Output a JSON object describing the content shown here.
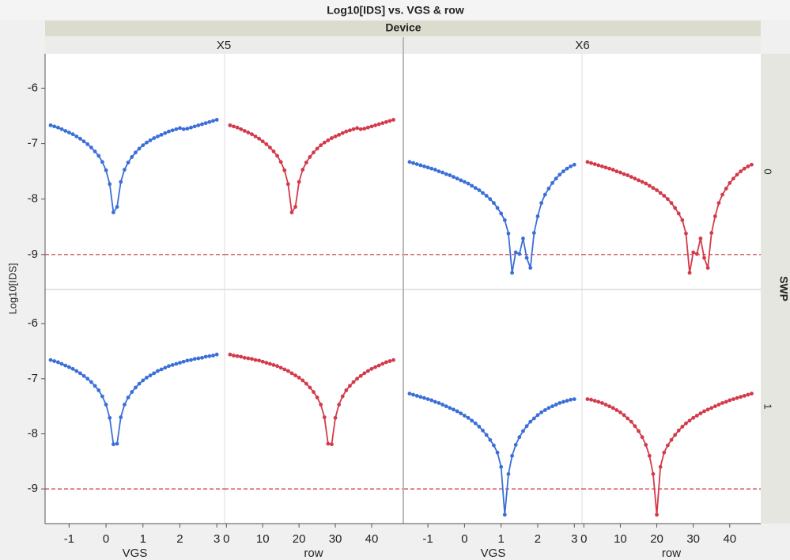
{
  "chart_data": {
    "type": "line",
    "title": "Log10[IDS] vs. VGS & row",
    "y_label": "Log10[IDS]",
    "facet_label": "Device",
    "strip_label": "SWP",
    "ylim": [
      -9.63,
      -5.38
    ],
    "yticks": [
      -9,
      -8,
      -7,
      -6
    ],
    "reference_line": {
      "value": -9,
      "color": "#c8323c"
    },
    "x_axes": [
      {
        "label": "VGS",
        "xlim": [
          -1.65,
          3.21
        ],
        "xticks": [
          -1,
          0,
          1,
          2,
          3
        ],
        "color": "#3b6fd8"
      },
      {
        "label": "row",
        "xlim": [
          -0.5,
          48.5
        ],
        "xticks": [
          0,
          10,
          20,
          30,
          40
        ],
        "color": "#d33a4a"
      }
    ],
    "vgs": [
      -1.5,
      -1.4,
      -1.3,
      -1.2,
      -1.1,
      -1,
      -0.9,
      -0.8,
      -0.7,
      -0.6,
      -0.5,
      -0.4,
      -0.3,
      -0.2,
      -0.1,
      0,
      0.1,
      0.2,
      0.3,
      0.4,
      0.5,
      0.6,
      0.7,
      0.8,
      0.9,
      1,
      1.1,
      1.2,
      1.3,
      1.4,
      1.5,
      1.6,
      1.7,
      1.8,
      1.9,
      2,
      2.1,
      2.2,
      2.3,
      2.4,
      2.5,
      2.6,
      2.7,
      2.8,
      2.9,
      3
    ],
    "swp": [
      {
        "name": "0",
        "row": [
          1,
          2,
          3,
          4,
          5,
          6,
          7,
          8,
          9,
          10,
          11,
          12,
          13,
          14,
          15,
          16,
          17,
          18,
          19,
          20,
          21,
          22,
          23,
          24,
          25,
          26,
          27,
          28,
          29,
          30,
          31,
          32,
          33,
          34,
          35,
          36,
          37,
          38,
          39,
          40,
          41,
          42,
          43,
          44,
          45,
          46
        ]
      },
      {
        "name": "1",
        "row": [
          46,
          45,
          44,
          43,
          42,
          41,
          40,
          39,
          38,
          37,
          36,
          35,
          34,
          33,
          32,
          31,
          30,
          29,
          28,
          27,
          26,
          25,
          24,
          23,
          22,
          21,
          20,
          19,
          18,
          17,
          16,
          15,
          14,
          13,
          12,
          11,
          10,
          9,
          8,
          7,
          6,
          5,
          4,
          3,
          2,
          1
        ]
      }
    ],
    "devices": [
      {
        "name": "X5",
        "cells": [
          {
            "values": [
              -6.67,
              -6.69,
              -6.71,
              -6.74,
              -6.77,
              -6.8,
              -6.83,
              -6.87,
              -6.91,
              -6.96,
              -7.01,
              -7.07,
              -7.14,
              -7.22,
              -7.33,
              -7.48,
              -7.73,
              -8.24,
              -8.14,
              -7.69,
              -7.47,
              -7.34,
              -7.24,
              -7.16,
              -7.09,
              -7.03,
              -6.98,
              -6.94,
              -6.9,
              -6.87,
              -6.84,
              -6.81,
              -6.78,
              -6.76,
              -6.74,
              -6.72,
              -6.74,
              -6.73,
              -6.71,
              -6.69,
              -6.67,
              -6.65,
              -6.63,
              -6.61,
              -6.59,
              -6.57
            ]
          },
          {
            "values": [
              -6.66,
              -6.68,
              -6.7,
              -6.73,
              -6.76,
              -6.79,
              -6.82,
              -6.86,
              -6.9,
              -6.95,
              -7,
              -7.06,
              -7.13,
              -7.21,
              -7.32,
              -7.47,
              -7.71,
              -8.19,
              -8.18,
              -7.7,
              -7.47,
              -7.34,
              -7.24,
              -7.16,
              -7.09,
              -7.03,
              -6.98,
              -6.94,
              -6.9,
              -6.86,
              -6.83,
              -6.8,
              -6.77,
              -6.75,
              -6.73,
              -6.71,
              -6.69,
              -6.67,
              -6.66,
              -6.64,
              -6.63,
              -6.62,
              -6.6,
              -6.59,
              -6.58,
              -6.56
            ]
          }
        ]
      },
      {
        "name": "X6",
        "cells": [
          {
            "values": [
              -7.33,
              -7.35,
              -7.37,
              -7.39,
              -7.41,
              -7.43,
              -7.45,
              -7.47,
              -7.5,
              -7.52,
              -7.55,
              -7.57,
              -7.6,
              -7.63,
              -7.66,
              -7.69,
              -7.72,
              -7.76,
              -7.8,
              -7.84,
              -7.89,
              -7.94,
              -8,
              -8.07,
              -8.16,
              -8.26,
              -8.38,
              -8.62,
              -9.33,
              -8.96,
              -8.99,
              -8.71,
              -9.06,
              -9.24,
              -8.61,
              -8.31,
              -8.07,
              -7.92,
              -7.81,
              -7.71,
              -7.63,
              -7.56,
              -7.5,
              -7.45,
              -7.41,
              -7.38
            ]
          },
          {
            "values": [
              -7.27,
              -7.29,
              -7.31,
              -7.33,
              -7.35,
              -7.37,
              -7.39,
              -7.42,
              -7.44,
              -7.47,
              -7.5,
              -7.53,
              -7.56,
              -7.59,
              -7.63,
              -7.67,
              -7.71,
              -7.76,
              -7.81,
              -7.87,
              -7.94,
              -8.02,
              -8.11,
              -8.21,
              -8.34,
              -8.6,
              -9.47,
              -8.73,
              -8.4,
              -8.2,
              -8.06,
              -7.95,
              -7.86,
              -7.78,
              -7.72,
              -7.66,
              -7.61,
              -7.57,
              -7.53,
              -7.5,
              -7.47,
              -7.44,
              -7.42,
              -7.4,
              -7.38,
              -7.37
            ]
          }
        ]
      }
    ]
  }
}
